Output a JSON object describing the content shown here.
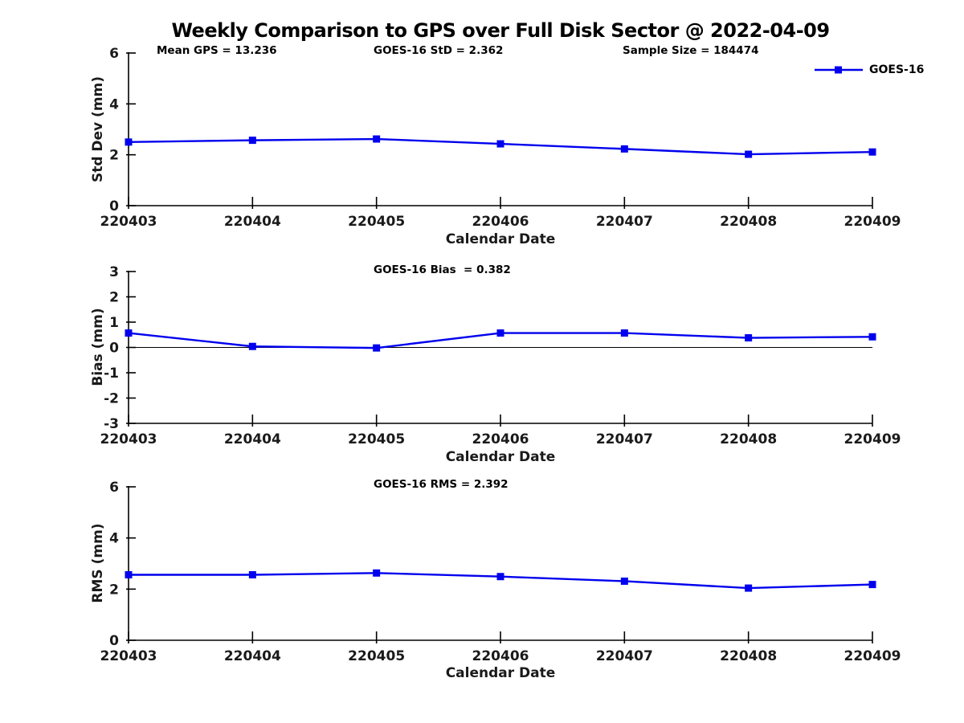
{
  "figure": {
    "title": "Weekly Comparison to GPS over Full Disk Sector @ 2022-04-09",
    "line_color": "#0000EE",
    "axis_color": "#000000",
    "tick_label_color": "#1a1a1a"
  },
  "legend": {
    "label": "GOES-16",
    "position": "top-right"
  },
  "chart_data": [
    {
      "type": "line",
      "categories": [
        "220403",
        "220404",
        "220405",
        "220406",
        "220407",
        "220408",
        "220409"
      ],
      "series": [
        {
          "name": "GOES-16",
          "values": [
            2.5,
            2.57,
            2.62,
            2.43,
            2.23,
            2.02,
            2.11
          ]
        }
      ],
      "title": "",
      "xlabel": "Calendar Date",
      "ylabel": "Std Dev (mm)",
      "ylim": [
        0,
        6
      ],
      "yticks": [
        0,
        2,
        4,
        6
      ],
      "grid": false,
      "zero_line": false,
      "annotations": [
        {
          "id": "mean-gps",
          "text": "Mean GPS = 13.236"
        },
        {
          "id": "goes16-std",
          "text": "GOES-16 StD = 2.362"
        },
        {
          "id": "sample-size",
          "text": "Sample Size = 184474"
        }
      ]
    },
    {
      "type": "line",
      "categories": [
        "220403",
        "220404",
        "220405",
        "220406",
        "220407",
        "220408",
        "220409"
      ],
      "series": [
        {
          "name": "GOES-16",
          "values": [
            0.57,
            0.04,
            -0.02,
            0.57,
            0.57,
            0.38,
            0.42
          ]
        }
      ],
      "title": "",
      "xlabel": "Calendar Date",
      "ylabel": "Bias (mm)",
      "ylim": [
        -3,
        3
      ],
      "yticks": [
        -3,
        -2,
        -1,
        0,
        1,
        2,
        3
      ],
      "grid": false,
      "zero_line": true,
      "annotations": [
        {
          "id": "goes16-bias",
          "text": "GOES-16 Bias  = 0.382"
        }
      ]
    },
    {
      "type": "line",
      "categories": [
        "220403",
        "220404",
        "220405",
        "220406",
        "220407",
        "220408",
        "220409"
      ],
      "series": [
        {
          "name": "GOES-16",
          "values": [
            2.56,
            2.56,
            2.63,
            2.49,
            2.31,
            2.04,
            2.18
          ]
        }
      ],
      "title": "",
      "xlabel": "Calendar Date",
      "ylabel": "RMS (mm)",
      "ylim": [
        0,
        6
      ],
      "yticks": [
        0,
        2,
        4,
        6
      ],
      "grid": false,
      "zero_line": false,
      "annotations": [
        {
          "id": "goes16-rms",
          "text": "GOES-16 RMS = 2.392"
        }
      ]
    }
  ]
}
